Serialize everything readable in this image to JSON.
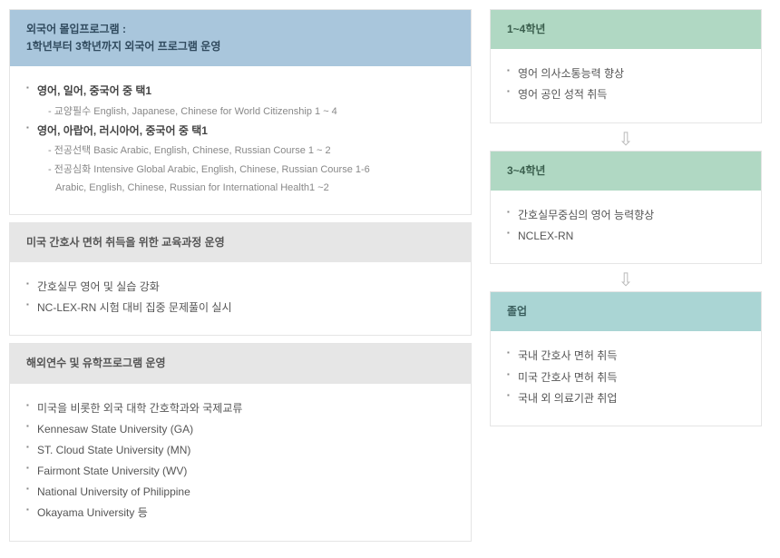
{
  "left": {
    "s1": {
      "title1": "외국어 몰입프로그램 :",
      "title2": "1학년부터 3학년까지 외국어 프로그램 운영",
      "b1": "영어, 일어, 중국어 중 택1",
      "b1s1": "교양필수 English, Japanese, Chinese for World Citizenship 1 ~ 4",
      "b2": "영어, 아랍어, 러시아어, 중국어 중 택1",
      "b2s1": "전공선택 Basic Arabic, English, Chinese, Russian Course 1 ~ 2",
      "b2s2": "전공심화 Intensive Global Arabic, English, Chinese, Russian Course 1-6",
      "b2s2cont": "Arabic, English, Chinese, Russian for International Health1 ~2"
    },
    "s2": {
      "title": "미국 간호사 면허 취득을 위한 교육과정 운영",
      "b1": "간호실무 영어 및 실습 강화",
      "b2": "NC-LEX-RN 시험 대비 집중 문제풀이 실시"
    },
    "s3": {
      "title": "해외연수 및 유학프로그램 운영",
      "b1": "미국을 비롯한 외국 대학 간호학과와 국제교류",
      "b2": "Kennesaw State University (GA)",
      "b3": "ST. Cloud State University (MN)",
      "b4": "Fairmont State University (WV)",
      "b5": "National University of Philippine",
      "b6": "Okayama University 등"
    }
  },
  "right": {
    "p1": {
      "title": "1~4학년",
      "b1": "영어 의사소통능력 향상",
      "b2": "영어 공인 성적 취득"
    },
    "p2": {
      "title": "3~4학년",
      "b1": "간호실무중심의 영어 능력향상",
      "b2": "NCLEX-RN"
    },
    "p3": {
      "title": "졸업",
      "b1": "국내 간호사 면허 취득",
      "b2": "미국 간호사 면허 취득",
      "b3": "국내 외 의료기관 취업"
    }
  },
  "arrow": "⇩"
}
